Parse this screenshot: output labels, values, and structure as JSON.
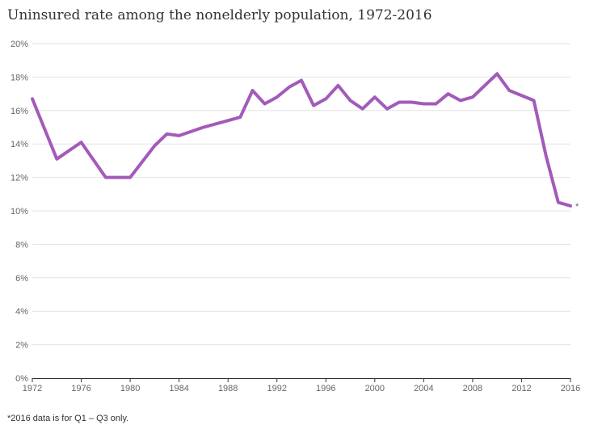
{
  "chart_data": {
    "type": "line",
    "title": "Uninsured rate among the nonelderly population, 1972-2016",
    "footnote": "*2016 data is for Q1 – Q3 only.",
    "end_marker": "*",
    "xlabel": "",
    "ylabel": "",
    "ylim": [
      0,
      20
    ],
    "xlim": [
      1972,
      2016
    ],
    "yticks": [
      0,
      2,
      4,
      6,
      8,
      10,
      12,
      14,
      16,
      18,
      20
    ],
    "ytick_labels": [
      "0%",
      "2%",
      "4%",
      "6%",
      "8%",
      "10%",
      "12%",
      "14%",
      "16%",
      "18%",
      "20%"
    ],
    "xticks": [
      1972,
      1976,
      1980,
      1984,
      1988,
      1992,
      1996,
      2000,
      2004,
      2008,
      2012,
      2016
    ],
    "xtick_labels": [
      "1972",
      "1976",
      "1980",
      "1984",
      "1988",
      "1992",
      "1996",
      "2000",
      "2004",
      "2008",
      "2012",
      "2016"
    ],
    "grid": true,
    "color": "#a35bba",
    "series": [
      {
        "x": [
          1972,
          1974,
          1976,
          1978,
          1980,
          1982,
          1983,
          1984,
          1986,
          1989,
          1990,
          1991,
          1992,
          1993,
          1994,
          1995,
          1996,
          1997,
          1998,
          1999,
          2000,
          2001,
          2002,
          2003,
          2004,
          2005,
          2006,
          2007,
          2008,
          2010,
          2011,
          2013,
          2014,
          2015,
          2016
        ],
        "values": [
          16.7,
          13.1,
          14.1,
          12.0,
          12.0,
          13.9,
          14.6,
          14.5,
          15.0,
          15.6,
          17.2,
          16.4,
          16.8,
          17.4,
          17.8,
          16.3,
          16.7,
          17.5,
          16.6,
          16.1,
          16.8,
          16.1,
          16.5,
          16.5,
          16.4,
          16.4,
          17.0,
          16.6,
          16.8,
          18.2,
          17.2,
          16.6,
          13.3,
          10.5,
          10.3
        ]
      }
    ]
  }
}
